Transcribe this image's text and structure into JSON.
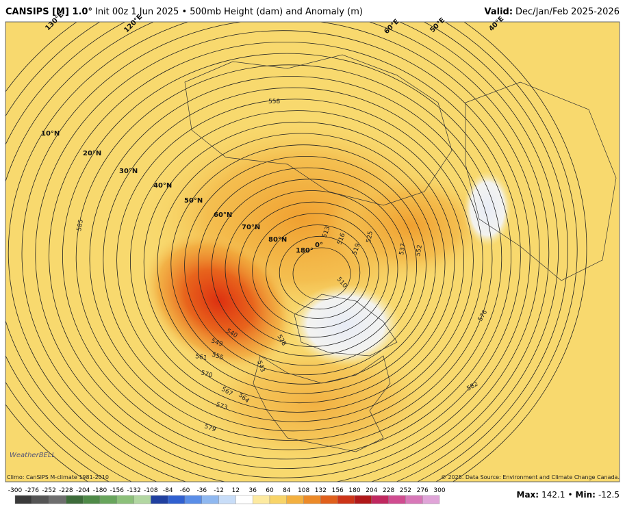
{
  "header": {
    "model": "CANSIPS [M] 1.0°",
    "title": "Init 00z 1 Jun 2025 • 500mb Height (dam) and Anomaly (m)",
    "valid_label": "Valid:",
    "valid": "Dec/Jan/Feb 2025-2026"
  },
  "map": {
    "longitude_labels": [
      "130°E",
      "120°E",
      "60°E",
      "50°E",
      "40°E"
    ],
    "latitude_labels": [
      "10°N",
      "20°N",
      "30°N",
      "40°N",
      "50°N",
      "60°N",
      "70°N",
      "80°N",
      "180°",
      "0°"
    ],
    "contour_labels": [
      "585",
      "558",
      "576",
      "582",
      "579",
      "573",
      "570",
      "567",
      "564",
      "561",
      "555",
      "549",
      "540",
      "552",
      "537",
      "525",
      "519",
      "516",
      "513",
      "510",
      "528",
      "543"
    ],
    "logo": "WeatherBELL"
  },
  "footer": {
    "climo": "Climo: CanSIPS M-climate 1981-2010",
    "copyright": "© 2025. Data Source: Environment and Climate Change Canada.",
    "colorbar_ticks": [
      -300,
      -276,
      -252,
      -228,
      -204,
      -180,
      -156,
      -132,
      -108,
      -84,
      -60,
      -36,
      -12,
      12,
      36,
      60,
      84,
      108,
      132,
      156,
      180,
      204,
      228,
      252,
      276,
      300
    ],
    "max_label": "Max:",
    "max": 142.1,
    "separator": "•",
    "min_label": "Min:",
    "min": -12.5
  }
}
